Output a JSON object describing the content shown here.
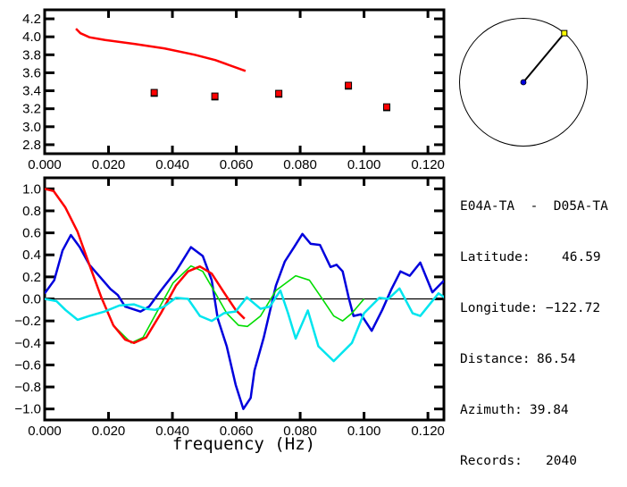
{
  "chart_data": [
    {
      "type": "scatter",
      "xlim": [
        0,
        0.125
      ],
      "ylim": [
        2.7,
        4.3
      ],
      "x_ticks": [
        "0.000",
        "0.020",
        "0.040",
        "0.060",
        "0.080",
        "0.100",
        "0.120"
      ],
      "y_ticks": [
        "2.8",
        "3.0",
        "3.2",
        "3.4",
        "3.6",
        "3.8",
        "4.0",
        "4.2"
      ],
      "grid": false,
      "colors": {
        "curve": "#ff0000",
        "points": "#ff0000"
      },
      "curve": {
        "x": [
          0.0098,
          0.0112,
          0.014,
          0.0189,
          0.0283,
          0.0376,
          0.047,
          0.0535,
          0.0629
        ],
        "y": [
          4.09,
          4.04,
          3.995,
          3.965,
          3.92,
          3.87,
          3.8,
          3.74,
          3.62
        ]
      },
      "points": {
        "x": [
          0.0343,
          0.0533,
          0.0733,
          0.0951,
          0.1071
        ],
        "y": [
          3.38,
          3.34,
          3.37,
          3.46,
          3.22
        ]
      }
    },
    {
      "type": "line",
      "xlim": [
        0,
        0.125
      ],
      "ylim": [
        -1.1,
        1.1
      ],
      "xlabel": "frequency (Hz)",
      "x_ticks": [
        "0.000",
        "0.020",
        "0.040",
        "0.060",
        "0.080",
        "0.100",
        "0.120"
      ],
      "y_ticks": [
        "-1.0",
        "-0.8",
        "-0.6",
        "-0.4",
        "-0.2",
        "0.0",
        "0.2",
        "0.4",
        "0.6",
        "0.8",
        "1.0"
      ],
      "grid": false,
      "zero_line": true,
      "series": [
        {
          "color": "#0000dd",
          "x": [
            0,
            0.003,
            0.0056,
            0.0082,
            0.011,
            0.014,
            0.0173,
            0.0206,
            0.0229,
            0.0252,
            0.03,
            0.0327,
            0.0364,
            0.0411,
            0.0458,
            0.0495,
            0.0523,
            0.0542,
            0.057,
            0.0598,
            0.0622,
            0.0645,
            0.0657,
            0.0686,
            0.0724,
            0.0752,
            0.0781,
            0.0807,
            0.0833,
            0.0862,
            0.0895,
            0.0914,
            0.0933,
            0.0952,
            0.0967,
            0.099,
            0.1024,
            0.1057,
            0.1086,
            0.1114,
            0.1143,
            0.1176,
            0.1214,
            0.1248,
            0.1259
          ],
          "y": [
            0.05,
            0.17,
            0.44,
            0.58,
            0.47,
            0.31,
            0.2,
            0.09,
            0.035,
            -0.07,
            -0.115,
            -0.07,
            0.076,
            0.25,
            0.47,
            0.39,
            0.17,
            -0.18,
            -0.43,
            -0.78,
            -1.0,
            -0.9,
            -0.65,
            -0.35,
            0.12,
            0.34,
            0.47,
            0.59,
            0.5,
            0.49,
            0.29,
            0.31,
            0.25,
            0.01,
            -0.155,
            -0.14,
            -0.29,
            -0.1,
            0.09,
            0.25,
            0.21,
            0.33,
            0.06,
            0.16,
            0.14
          ]
        },
        {
          "color": "#00dd00",
          "x": [
            0,
            0.0028,
            0.0065,
            0.0103,
            0.014,
            0.0178,
            0.0215,
            0.0271,
            0.0308,
            0.0355,
            0.0402,
            0.0458,
            0.0495,
            0.0533,
            0.057,
            0.0607,
            0.0635,
            0.0676,
            0.0724,
            0.0786,
            0.0829,
            0.0867,
            0.0905,
            0.0933,
            0.0962,
            0.1
          ],
          "y": [
            1.0,
            0.98,
            0.83,
            0.61,
            0.31,
            0.01,
            -0.24,
            -0.4,
            -0.35,
            -0.1,
            0.145,
            0.3,
            0.25,
            0.06,
            -0.13,
            -0.24,
            -0.25,
            -0.155,
            0.076,
            0.21,
            0.17,
            0.01,
            -0.155,
            -0.2,
            -0.13,
            0.0
          ]
        },
        {
          "color": "#ff0000",
          "x": [
            0,
            0.0028,
            0.0065,
            0.0103,
            0.014,
            0.0178,
            0.0215,
            0.0252,
            0.028,
            0.0318,
            0.0364,
            0.0411,
            0.0449,
            0.0486,
            0.0523,
            0.0561,
            0.0598,
            0.0626
          ],
          "y": [
            1.0,
            0.98,
            0.83,
            0.61,
            0.31,
            0.01,
            -0.24,
            -0.37,
            -0.4,
            -0.35,
            -0.13,
            0.12,
            0.25,
            0.295,
            0.23,
            0.06,
            -0.1,
            -0.18
          ]
        },
        {
          "color": "#00e5ee",
          "x": [
            0,
            0.0037,
            0.0065,
            0.0103,
            0.014,
            0.0187,
            0.0234,
            0.028,
            0.0318,
            0.0346,
            0.0374,
            0.0411,
            0.0449,
            0.0486,
            0.0523,
            0.0561,
            0.0598,
            0.0633,
            0.0676,
            0.0705,
            0.0738,
            0.0762,
            0.0786,
            0.0824,
            0.0857,
            0.0905,
            0.0962,
            0.1,
            0.1048,
            0.1076,
            0.1111,
            0.1152,
            0.1176,
            0.1233,
            0.1259
          ],
          "y": [
            0,
            -0.02,
            -0.1,
            -0.19,
            -0.155,
            -0.115,
            -0.06,
            -0.05,
            -0.09,
            -0.1,
            -0.07,
            0.01,
            0.0,
            -0.155,
            -0.2,
            -0.13,
            -0.115,
            0.015,
            -0.09,
            -0.07,
            0.076,
            -0.13,
            -0.36,
            -0.105,
            -0.43,
            -0.565,
            -0.4,
            -0.13,
            0.01,
            0.0,
            0.095,
            -0.13,
            -0.155,
            0.05,
            0.0
          ]
        }
      ]
    }
  ],
  "azimuth_dial": {
    "azimuth_deg": 39.84,
    "center_color": "#0000dd",
    "marker_color": "#ffff00"
  },
  "info": {
    "pair": "E04A-TA  -  D05A-TA",
    "rows": [
      {
        "label": "Latitude:",
        "value": "46.59",
        "pad": " "
      },
      {
        "label": "Longitude:",
        "value": "-122.72",
        "pad": ""
      },
      {
        "label": "Distance:",
        "value": "86.54",
        "pad": ""
      },
      {
        "label": "Azimuth:",
        "value": "39.84",
        "pad": ""
      },
      {
        "label": "Records:",
        "value": "2040",
        "pad": " "
      }
    ]
  }
}
